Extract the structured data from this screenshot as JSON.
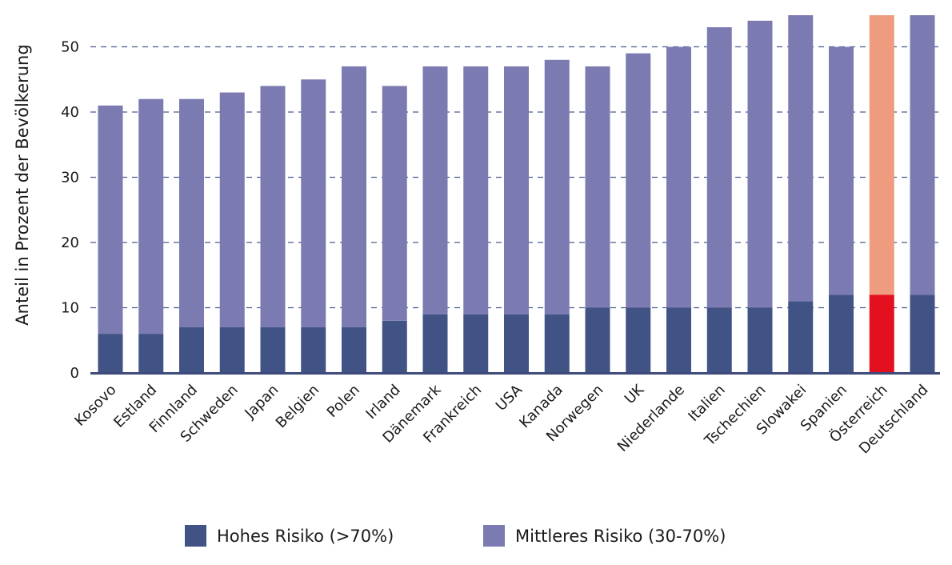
{
  "chart_data": {
    "type": "bar",
    "stacked": true,
    "ylabel": "Anteil in Prozent der Bevölkerung",
    "ylim": [
      0,
      55
    ],
    "yticks": [
      0,
      10,
      20,
      30,
      40,
      50
    ],
    "grid": "horizontal dashed",
    "categories": [
      "Kosovo",
      "Estland",
      "Finnland",
      "Schweden",
      "Japan",
      "Belgien",
      "Polen",
      "Irland",
      "Dänemark",
      "Frankreich",
      "USA",
      "Kanada",
      "Norwegen",
      "UK",
      "Niederlande",
      "Italien",
      "Tschechien",
      "Slowakei",
      "Spanien",
      "Österreich",
      "Deutschland"
    ],
    "series": [
      {
        "name": "Hohes Risiko (>70%)",
        "color": "#415384",
        "values": [
          6,
          6,
          7,
          7,
          7,
          7,
          7,
          8,
          9,
          9,
          9,
          9,
          10,
          10,
          10,
          10,
          10,
          11,
          12,
          12,
          12
        ]
      },
      {
        "name": "Mittleres Risiko (30-70%)",
        "color": "#7b7bb1",
        "values": [
          35,
          36,
          35,
          36,
          37,
          38,
          40,
          36,
          38,
          38,
          38,
          39,
          37,
          39,
          40,
          43,
          44,
          44,
          38,
          43,
          43
        ]
      }
    ],
    "highlight": {
      "category": "Österreich",
      "colors": [
        "#e3101f",
        "#ef9b80"
      ]
    },
    "legend_position": "bottom"
  }
}
